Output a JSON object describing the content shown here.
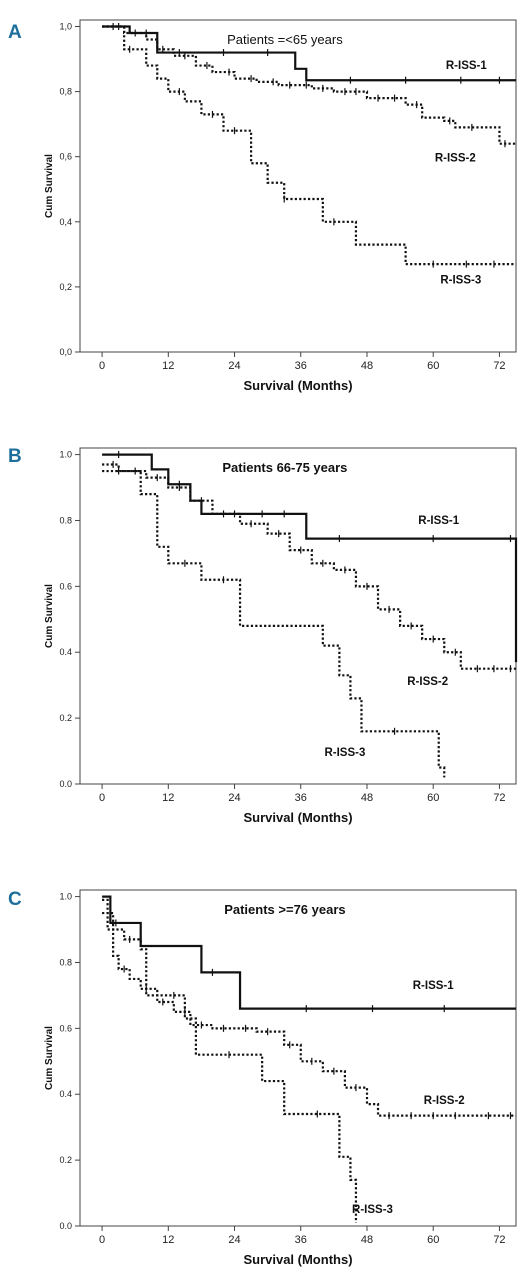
{
  "colors": {
    "panel_letter": "#1f6f9c",
    "curve": "#111111",
    "frame": "#444444"
  },
  "chart_data": [
    {
      "type": "line",
      "panel": "A",
      "title": "Patients =<65 years",
      "title_bold": false,
      "xlabel": "Survival (Months)",
      "ylabel": "Cum Survival",
      "xlim": [
        -4,
        75
      ],
      "ylim": [
        0,
        1.02
      ],
      "xticks": [
        0,
        12,
        24,
        36,
        48,
        60,
        72
      ],
      "xtick_labels": [
        "0",
        "12",
        "24",
        "36",
        "48",
        "60",
        "72"
      ],
      "yticks": [
        0,
        0.2,
        0.4,
        0.6,
        0.8,
        1.0
      ],
      "ytick_labels": [
        "0,0",
        "0,2",
        "0,4",
        "0,6",
        "0,8",
        "1,0"
      ],
      "grid": false,
      "series": [
        {
          "name": "R-ISS-1",
          "style": "solid",
          "x": [
            0,
            5,
            10,
            35,
            37,
            75
          ],
          "y": [
            1.0,
            0.98,
            0.92,
            0.87,
            0.835,
            0.835
          ],
          "censor_x": [
            3,
            8,
            14,
            22,
            30,
            45,
            55,
            65,
            72
          ]
        },
        {
          "name": "R-ISS-2",
          "style": "dotted",
          "x": [
            0,
            4,
            8,
            10,
            13,
            17,
            20,
            24,
            28,
            32,
            38,
            42,
            48,
            55,
            58,
            62,
            64,
            70,
            72,
            75
          ],
          "y": [
            1.0,
            0.98,
            0.96,
            0.93,
            0.91,
            0.88,
            0.86,
            0.84,
            0.83,
            0.82,
            0.81,
            0.8,
            0.78,
            0.76,
            0.72,
            0.71,
            0.69,
            0.69,
            0.64,
            0.64
          ],
          "censor_x": [
            2,
            6,
            11,
            15,
            19,
            23,
            27,
            31,
            34,
            37,
            40,
            44,
            46,
            50,
            53,
            57,
            63,
            67,
            73
          ]
        },
        {
          "name": "R-ISS-3",
          "style": "dotted",
          "x": [
            0,
            4,
            8,
            10,
            12,
            15,
            18,
            22,
            27,
            30,
            33,
            40,
            46,
            50,
            55,
            75
          ],
          "y": [
            1.0,
            0.93,
            0.88,
            0.84,
            0.8,
            0.77,
            0.73,
            0.68,
            0.58,
            0.52,
            0.47,
            0.4,
            0.33,
            0.33,
            0.27,
            0.27
          ],
          "censor_x": [
            5,
            14,
            20,
            24,
            33,
            42,
            60,
            66,
            71
          ]
        }
      ],
      "labels": [
        {
          "series": "R-ISS-1",
          "text": "R-ISS-1",
          "at_x": 66,
          "at_y": 0.87
        },
        {
          "series": "R-ISS-2",
          "text": "R-ISS-2",
          "at_x": 64,
          "at_y": 0.585
        },
        {
          "series": "R-ISS-3",
          "text": "R-ISS-3",
          "at_x": 65,
          "at_y": 0.21
        }
      ]
    },
    {
      "type": "line",
      "panel": "B",
      "title": "Patients 66-75 years",
      "title_bold": true,
      "xlabel": "Survival (Months)",
      "ylabel": "Cum Survival",
      "xlim": [
        -4,
        75
      ],
      "ylim": [
        0,
        1.02
      ],
      "xticks": [
        0,
        12,
        24,
        36,
        48,
        60,
        72
      ],
      "xtick_labels": [
        "0",
        "12",
        "24",
        "36",
        "48",
        "60",
        "72"
      ],
      "yticks": [
        0,
        0.2,
        0.4,
        0.6,
        0.8,
        1.0
      ],
      "ytick_labels": [
        "0.0",
        "0.2",
        "0.4",
        "0.6",
        "0.8",
        "1.0"
      ],
      "grid": false,
      "series": [
        {
          "name": "R-ISS-1",
          "style": "solid",
          "x": [
            0,
            9,
            12,
            16,
            18,
            37,
            75,
            75
          ],
          "y": [
            1.0,
            0.955,
            0.91,
            0.86,
            0.82,
            0.745,
            0.745,
            0.37
          ],
          "censor_x": [
            3,
            14,
            24,
            29,
            33,
            43,
            60,
            74
          ]
        },
        {
          "name": "R-ISS-2",
          "style": "dotted",
          "x": [
            0,
            3,
            8,
            12,
            16,
            20,
            25,
            30,
            34,
            38,
            42,
            46,
            50,
            54,
            58,
            62,
            65,
            75
          ],
          "y": [
            0.97,
            0.95,
            0.93,
            0.9,
            0.86,
            0.82,
            0.79,
            0.76,
            0.71,
            0.67,
            0.65,
            0.6,
            0.53,
            0.48,
            0.44,
            0.4,
            0.35,
            0.35
          ],
          "censor_x": [
            2,
            6,
            10,
            14,
            18,
            22,
            27,
            32,
            36,
            40,
            44,
            48,
            52,
            56,
            60,
            64,
            68,
            71,
            74
          ]
        },
        {
          "name": "R-ISS-3",
          "style": "dotted",
          "x": [
            0,
            7,
            10,
            12,
            18,
            25,
            40,
            43,
            45,
            47,
            60,
            61,
            62
          ],
          "y": [
            0.95,
            0.88,
            0.72,
            0.67,
            0.62,
            0.48,
            0.42,
            0.33,
            0.26,
            0.16,
            0.16,
            0.05,
            0.02
          ],
          "censor_x": [
            3,
            15,
            22,
            53
          ]
        }
      ],
      "labels": [
        {
          "series": "R-ISS-1",
          "text": "R-ISS-1",
          "at_x": 61,
          "at_y": 0.79
        },
        {
          "series": "R-ISS-2",
          "text": "R-ISS-2",
          "at_x": 59,
          "at_y": 0.3
        },
        {
          "series": "R-ISS-3",
          "text": "R-ISS-3",
          "at_x": 44,
          "at_y": 0.085
        }
      ]
    },
    {
      "type": "line",
      "panel": "C",
      "title": "Patients >=76 years",
      "title_bold": true,
      "xlabel": "Survival (Months)",
      "ylabel": "Cum Survival",
      "xlim": [
        -4,
        75
      ],
      "ylim": [
        0,
        1.02
      ],
      "xticks": [
        0,
        12,
        24,
        36,
        48,
        60,
        72
      ],
      "xtick_labels": [
        "0",
        "12",
        "24",
        "36",
        "48",
        "60",
        "72"
      ],
      "yticks": [
        0,
        0.2,
        0.4,
        0.6,
        0.8,
        1.0
      ],
      "ytick_labels": [
        "0.0",
        "0.2",
        "0.4",
        "0.6",
        "0.8",
        "1.0"
      ],
      "grid": false,
      "series": [
        {
          "name": "R-ISS-1",
          "style": "solid",
          "x": [
            0,
            1.5,
            7,
            18,
            25,
            75
          ],
          "y": [
            1.0,
            0.92,
            0.85,
            0.77,
            0.66,
            0.66
          ],
          "censor_x": [
            2.5,
            20,
            37,
            49,
            62
          ]
        },
        {
          "name": "R-ISS-2",
          "style": "dotted",
          "x": [
            0,
            1,
            2,
            3,
            5,
            7,
            10,
            13,
            16,
            20,
            28,
            33,
            36,
            40,
            44,
            48,
            50,
            75
          ],
          "y": [
            0.99,
            0.9,
            0.82,
            0.78,
            0.75,
            0.72,
            0.68,
            0.65,
            0.61,
            0.6,
            0.59,
            0.55,
            0.5,
            0.47,
            0.42,
            0.37,
            0.335,
            0.335
          ],
          "censor_x": [
            4,
            8,
            11,
            15,
            18,
            22,
            26,
            30,
            34,
            38,
            42,
            46,
            52,
            56,
            60,
            64,
            70,
            74
          ]
        },
        {
          "name": "R-ISS-3",
          "style": "dotted",
          "x": [
            0,
            2,
            4,
            7,
            8,
            15,
            17,
            29,
            33,
            43,
            45,
            46
          ],
          "y": [
            0.95,
            0.9,
            0.87,
            0.84,
            0.7,
            0.63,
            0.52,
            0.44,
            0.34,
            0.21,
            0.14,
            0.01
          ],
          "censor_x": [
            5,
            13,
            23,
            39
          ]
        }
      ],
      "labels": [
        {
          "series": "R-ISS-1",
          "text": "R-ISS-1",
          "at_x": 60,
          "at_y": 0.72
        },
        {
          "series": "R-ISS-2",
          "text": "R-ISS-2",
          "at_x": 62,
          "at_y": 0.37
        },
        {
          "series": "R-ISS-3",
          "text": "R-ISS-3",
          "at_x": 49,
          "at_y": 0.04
        }
      ]
    }
  ]
}
